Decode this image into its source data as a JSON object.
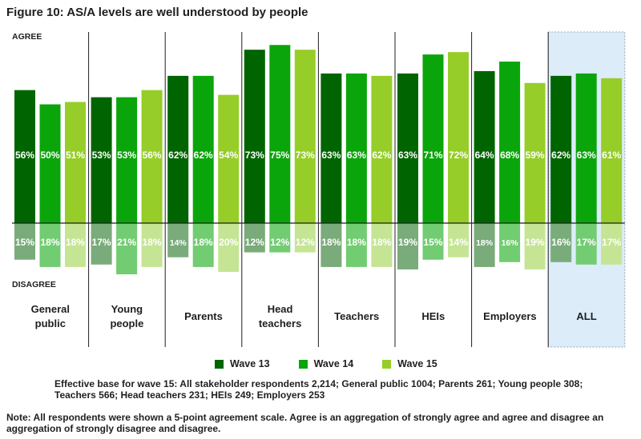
{
  "title": "Figure 10: AS/A levels are well understood by people",
  "chart_data": {
    "type": "bar",
    "stacked": "diverging",
    "agree_label": "AGREE",
    "disagree_label": "DISAGREE",
    "categories": [
      [
        "General",
        "public"
      ],
      [
        "Young",
        "people"
      ],
      [
        "Parents"
      ],
      [
        "Head",
        "teachers"
      ],
      [
        "Teachers"
      ],
      [
        "HEIs"
      ],
      [
        "Employers"
      ],
      [
        "ALL"
      ]
    ],
    "highlight_category": 7,
    "series": [
      {
        "name": "Wave 13",
        "color": "#006400",
        "agree": [
          56,
          53,
          62,
          73,
          63,
          63,
          64,
          62
        ],
        "disagree": [
          15,
          17,
          14,
          12,
          18,
          19,
          18,
          16
        ]
      },
      {
        "name": "Wave 14",
        "color": "#0aa50a",
        "agree": [
          50,
          53,
          62,
          75,
          63,
          71,
          68,
          63
        ],
        "disagree": [
          18,
          21,
          18,
          12,
          18,
          15,
          16,
          17
        ]
      },
      {
        "name": "Wave 15",
        "color": "#96cd28",
        "agree": [
          51,
          56,
          54,
          73,
          62,
          72,
          59,
          61
        ],
        "disagree": [
          18,
          18,
          20,
          12,
          18,
          14,
          19,
          17
        ]
      }
    ],
    "disagree_colors": [
      "#7aab7a",
      "#72cc72",
      "#c5e594"
    ],
    "agree_range": [
      0,
      80
    ],
    "disagree_range": [
      0,
      22
    ],
    "legend_position": "bottom",
    "grid": false
  },
  "base_note": "Effective base for wave 15: All stakeholder respondents 2,214; General public 1004; Parents 261; Young people 308; Teachers 566; Head teachers 231; HEIs 249; Employers 253",
  "note": "Note: All respondents were shown a 5-point agreement scale. Agree is an aggregation of strongly agree and agree and disagree an aggregation of strongly disagree and disagree."
}
